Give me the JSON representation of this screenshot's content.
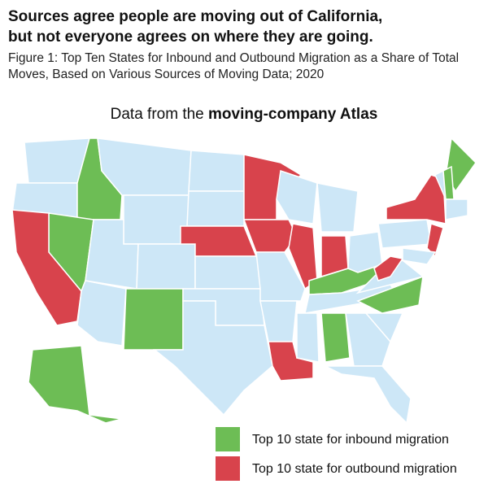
{
  "header": {
    "title": "Sources agree people are moving out of California, but not everyone agrees on where they are going.",
    "subtitle": "Figure 1: Top Ten States for Inbound and Outbound Migration as a Share of Total Moves, Based on Various Sources of Moving Data; 2020"
  },
  "map": {
    "heading": "Data from the",
    "heading_bold": "moving-company Atlas",
    "legend": [
      {
        "label": "Top 10 state for inbound migration",
        "color": "#6dbd55"
      },
      {
        "label": "Top 10 state for outbound migration",
        "color": "#d8434c"
      }
    ]
  }
}
